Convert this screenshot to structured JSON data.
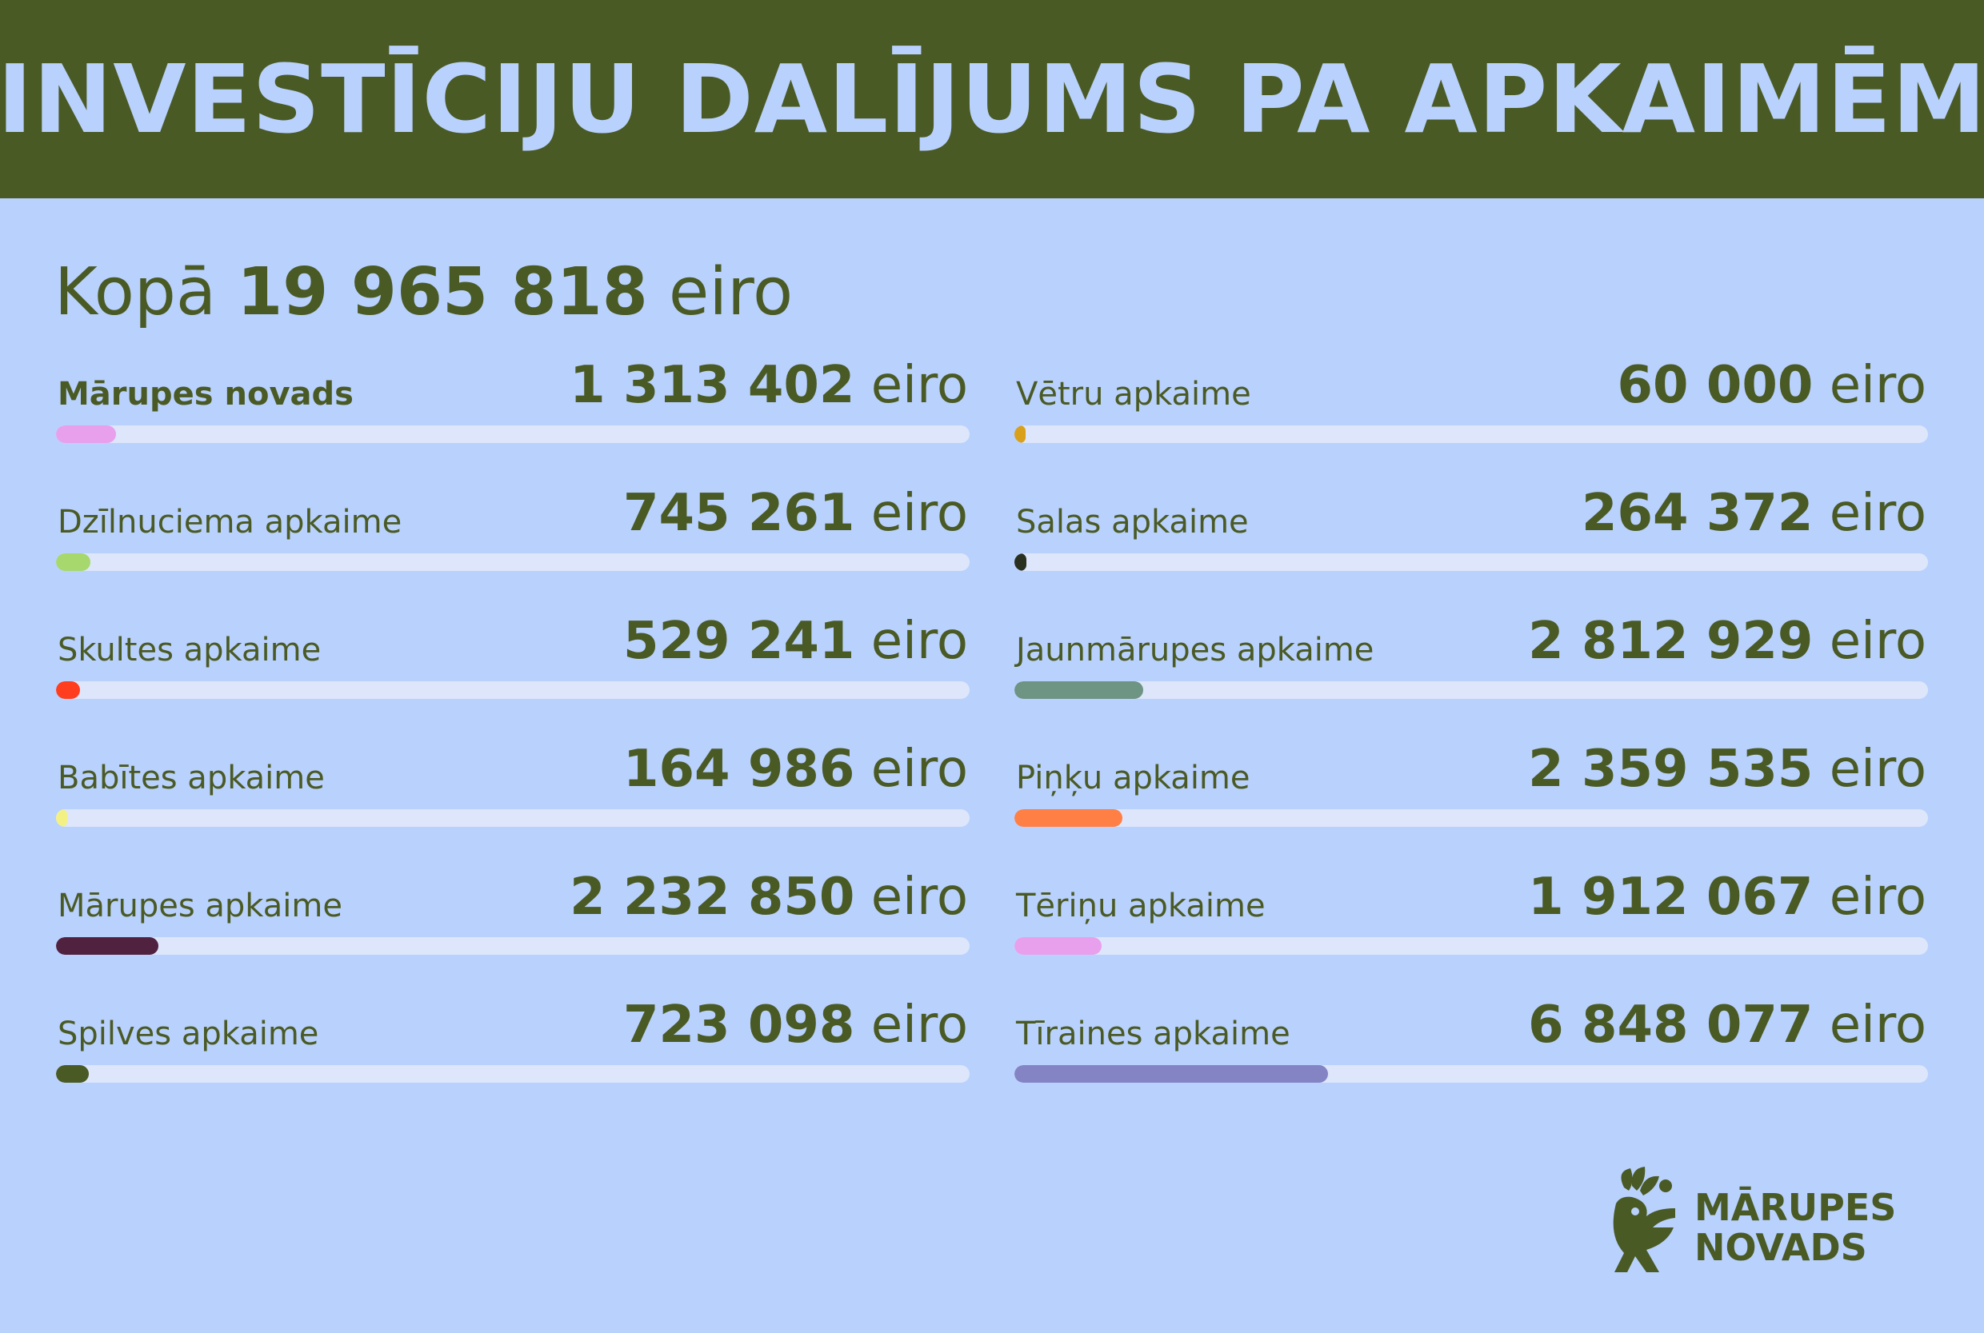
{
  "header": {
    "title": "INVESTĪCIJU DALĪJUMS PA APKAIMĒM"
  },
  "total": {
    "prefix": "Kopā",
    "amount": "19 965 818",
    "unit": "eiro"
  },
  "colors": {
    "background": "#b9d1fd",
    "header": "#4a5a24",
    "text": "#4a5a24",
    "track": "#dde6fb"
  },
  "chart_data": {
    "type": "bar",
    "title": "INVESTĪCIJU DALĪJUMS PA APKAIMĒM",
    "unit": "eiro",
    "total": 19965818,
    "categories": [
      "Mārupes novads",
      "Dzīlnuciema apkaime",
      "Skultes apkaime",
      "Babītes apkaime",
      "Mārupes apkaime",
      "Spilves apkaime",
      "Vētru apkaime",
      "Salas apkaime",
      "Jaunmārupes apkaime",
      "Piņķu apkaime",
      "Tēriņu apkaime",
      "Tīraines apkaime"
    ],
    "values": [
      1313402,
      745261,
      529241,
      164986,
      2232850,
      723098,
      60000,
      264372,
      2812929,
      2359535,
      1912067,
      6848077
    ],
    "display_values": [
      "1 313 402",
      "745 261",
      "529 241",
      "164 986",
      "2 232 850",
      "723 098",
      "60 000",
      "264 372",
      "2 812 929",
      "2 359 535",
      "1 912 067",
      "6 848 077"
    ],
    "colors": [
      "#e8a0ec",
      "#a6d86e",
      "#ff3d1f",
      "#f4f184",
      "#512140",
      "#4a5a24",
      "#d9a01c",
      "#2a3020",
      "#6e9484",
      "#ff7f45",
      "#e8a0ec",
      "#8484c4"
    ]
  },
  "logo": {
    "line1": "MĀRUPES",
    "line2": "NOVADS"
  }
}
